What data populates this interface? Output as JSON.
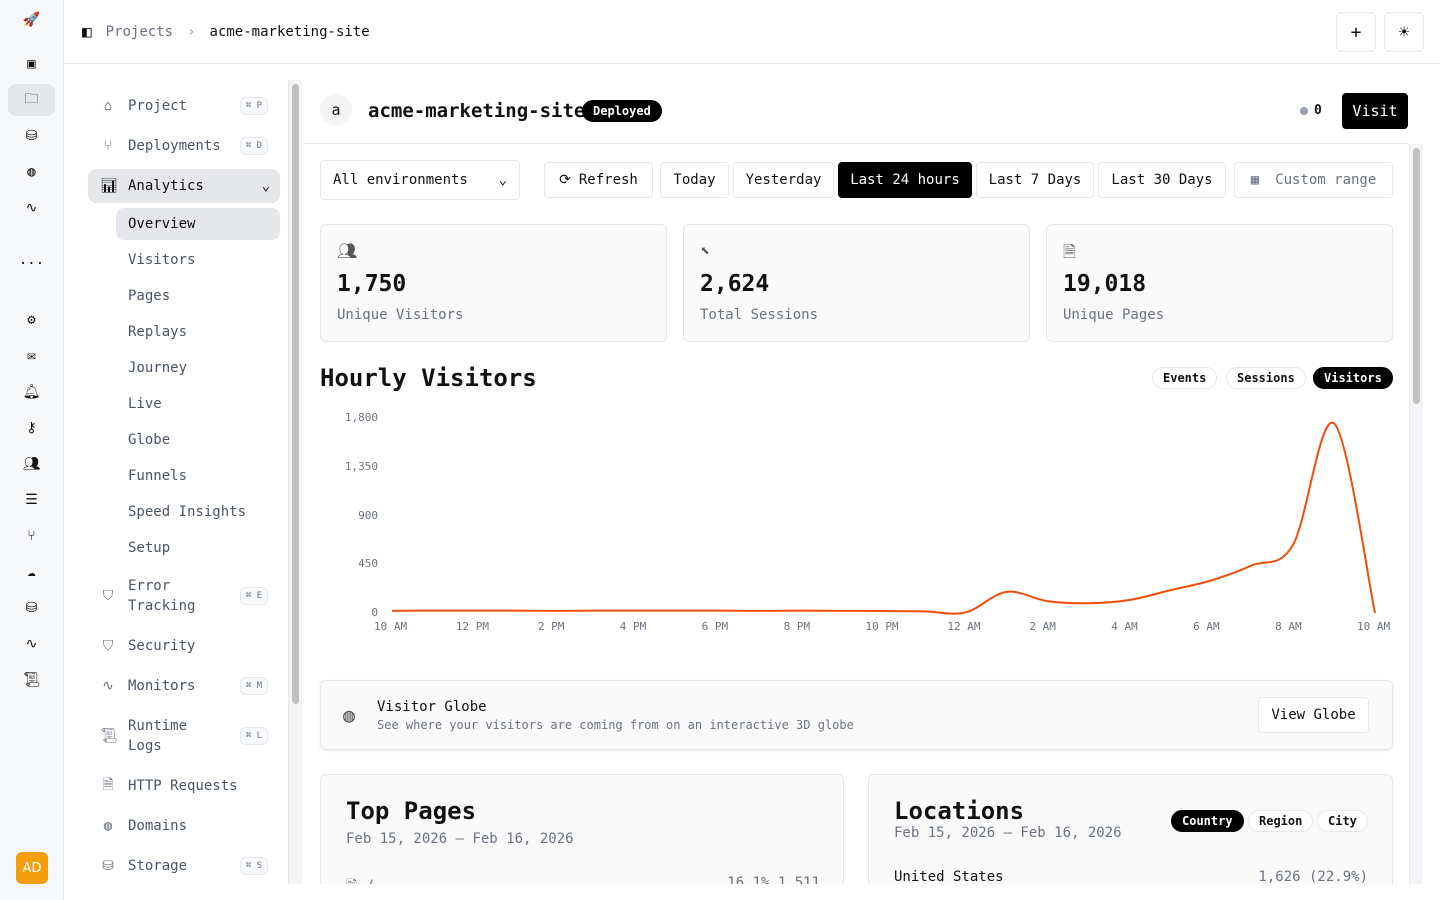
{
  "breadcrumb": {
    "parent": "Projects",
    "current": "acme-marketing-site"
  },
  "user": {
    "initials": "AD"
  },
  "nav": {
    "items": [
      {
        "label": "Project",
        "shortcut": "⌘ P",
        "icon": "home-icon"
      },
      {
        "label": "Deployments",
        "shortcut": "⌘ D",
        "icon": "git-branch-icon"
      },
      {
        "label": "Analytics",
        "icon": "bar-chart-icon",
        "expanded": true
      },
      {
        "label": "Error Tracking",
        "shortcut": "⌘ E",
        "icon": "shield-icon"
      },
      {
        "label": "Security",
        "icon": "shield-icon"
      },
      {
        "label": "Monitors",
        "shortcut": "⌘ M",
        "icon": "activity-icon"
      },
      {
        "label": "Runtime Logs",
        "shortcut": "⌘ L",
        "icon": "scroll-icon"
      },
      {
        "label": "HTTP Requests",
        "icon": "file-icon"
      },
      {
        "label": "Domains",
        "icon": "globe-icon"
      },
      {
        "label": "Storage",
        "shortcut": "⌘ S",
        "icon": "database-icon"
      }
    ],
    "analytics_sub": [
      "Overview",
      "Visitors",
      "Pages",
      "Replays",
      "Journey",
      "Live",
      "Globe",
      "Funnels",
      "Speed Insights",
      "Setup"
    ],
    "active_sub": "Overview"
  },
  "project": {
    "avatar_letter": "a",
    "name": "acme-marketing-site",
    "status": "Deployed",
    "count": "0",
    "visit_label": "Visit"
  },
  "filters": {
    "environment": "All environments",
    "refresh": "Refresh",
    "ranges": [
      "Today",
      "Yesterday",
      "Last 24 hours",
      "Last 7 Days",
      "Last 30 Days"
    ],
    "active_range": "Last 24 hours",
    "custom": "Custom range"
  },
  "stats": [
    {
      "value": "1,750",
      "label": "Unique Visitors",
      "icon": "users-icon"
    },
    {
      "value": "2,624",
      "label": "Total Sessions",
      "icon": "cursor-icon"
    },
    {
      "value": "19,018",
      "label": "Unique Pages",
      "icon": "file-text-icon"
    }
  ],
  "chart_title": "Hourly Visitors",
  "chart_toggles": [
    "Events",
    "Sessions",
    "Visitors"
  ],
  "chart_active": "Visitors",
  "accent": "#f04e0c",
  "chart_data": {
    "type": "line",
    "ylim": [
      0,
      1800
    ],
    "yticks": [
      "1,800",
      "1,350",
      "900",
      "450",
      "0"
    ],
    "xticks": [
      "10 AM",
      "12 PM",
      "2 PM",
      "4 PM",
      "6 PM",
      "8 PM",
      "10 PM",
      "12 AM",
      "2 AM",
      "4 AM",
      "6 AM",
      "8 AM",
      "10 AM"
    ],
    "x": [
      "10 AM",
      "11 AM",
      "12 PM",
      "1 PM",
      "2 PM",
      "3 PM",
      "4 PM",
      "5 PM",
      "6 PM",
      "7 PM",
      "8 PM",
      "9 PM",
      "10 PM",
      "11 PM",
      "12 AM",
      "1 AM",
      "2 AM",
      "3 AM",
      "4 AM",
      "5 AM",
      "6 AM",
      "7 AM",
      "8 AM",
      "9 AM",
      "10 AM"
    ],
    "values": [
      20,
      22,
      22,
      22,
      20,
      22,
      22,
      22,
      22,
      20,
      22,
      20,
      18,
      15,
      5,
      195,
      110,
      90,
      120,
      210,
      300,
      440,
      630,
      1750,
      0
    ],
    "grid": false
  },
  "globe": {
    "title": "Visitor Globe",
    "desc": "See where your visitors are coming from on an interactive 3D globe",
    "button": "View Globe"
  },
  "top_pages": {
    "title": "Top Pages",
    "range": "Feb 15, 2026 – Feb 16, 2026",
    "rows": [
      {
        "path": "/",
        "value": "16.1% 1,511"
      }
    ]
  },
  "locations": {
    "title": "Locations",
    "range": "Feb 15, 2026 – Feb 16, 2026",
    "tabs": [
      "Country",
      "Region",
      "City"
    ],
    "active": "Country",
    "rows": [
      {
        "name": "United States",
        "value": "1,626 (22.9%)"
      }
    ]
  }
}
